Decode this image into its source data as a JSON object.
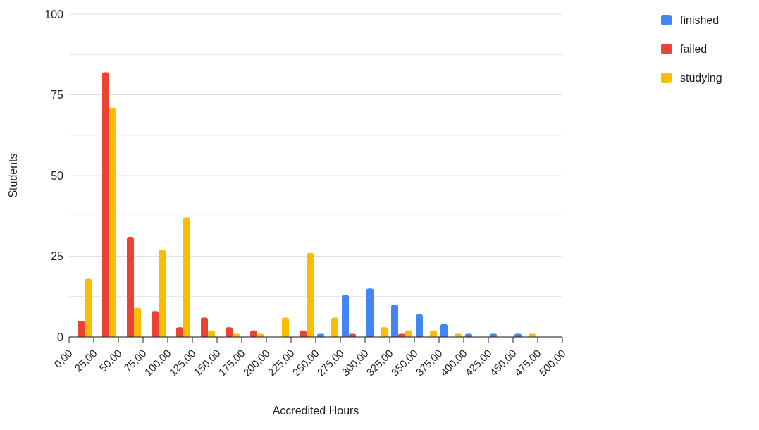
{
  "chart_data": {
    "type": "bar",
    "xlabel": "Accredited Hours",
    "ylabel": "Students",
    "x": [
      12.5,
      37.5,
      62.5,
      87.5,
      112.5,
      137.5,
      162.5,
      187.5,
      212.5,
      237.5,
      262.5,
      287.5,
      312.5,
      337.5,
      362.5,
      387.5,
      412.5,
      437.5,
      462.5
    ],
    "series": [
      {
        "name": "finished",
        "color": "#4285f4",
        "values": [
          null,
          null,
          null,
          null,
          null,
          null,
          null,
          null,
          null,
          null,
          1,
          13,
          15,
          10,
          7,
          4,
          1,
          1,
          1
        ]
      },
      {
        "name": "failed",
        "color": "#ea4335",
        "values": [
          5,
          82,
          31,
          8,
          3,
          6,
          3,
          2,
          null,
          2,
          null,
          1,
          null,
          1,
          null,
          null,
          null,
          null,
          null
        ]
      },
      {
        "name": "studying",
        "color": "#fbbc04",
        "values": [
          18,
          71,
          9,
          27,
          37,
          2,
          1,
          1,
          6,
          26,
          6,
          null,
          3,
          2,
          2,
          1,
          null,
          null,
          1
        ]
      }
    ],
    "xlim": [
      0,
      500
    ],
    "xticks": [
      {
        "value": 0,
        "label": "0,00"
      },
      {
        "value": 25,
        "label": "25,00"
      },
      {
        "value": 50,
        "label": "50,00"
      },
      {
        "value": 75,
        "label": "75,00"
      },
      {
        "value": 100,
        "label": "100,00"
      },
      {
        "value": 125,
        "label": "125,00"
      },
      {
        "value": 150,
        "label": "150,00"
      },
      {
        "value": 175,
        "label": "175,00"
      },
      {
        "value": 200,
        "label": "200,00"
      },
      {
        "value": 225,
        "label": "225,00"
      },
      {
        "value": 250,
        "label": "250,00"
      },
      {
        "value": 275,
        "label": "275,00"
      },
      {
        "value": 300,
        "label": "300,00"
      },
      {
        "value": 325,
        "label": "325,00"
      },
      {
        "value": 350,
        "label": "350,00"
      },
      {
        "value": 375,
        "label": "375,00"
      },
      {
        "value": 400,
        "label": "400,00"
      },
      {
        "value": 425,
        "label": "425,00"
      },
      {
        "value": 450,
        "label": "450,00"
      },
      {
        "value": 475,
        "label": "475,00"
      },
      {
        "value": 500,
        "label": "500,00"
      }
    ],
    "ylim": [
      0,
      100
    ],
    "yticks": [
      0,
      {
        "value": 12.5,
        "label": null
      },
      25,
      {
        "value": 37.5,
        "label": null
      },
      50,
      {
        "value": 62.5,
        "label": null
      },
      75,
      {
        "value": 87.5,
        "label": null
      },
      100
    ],
    "grid": "y",
    "legend": "top right"
  }
}
